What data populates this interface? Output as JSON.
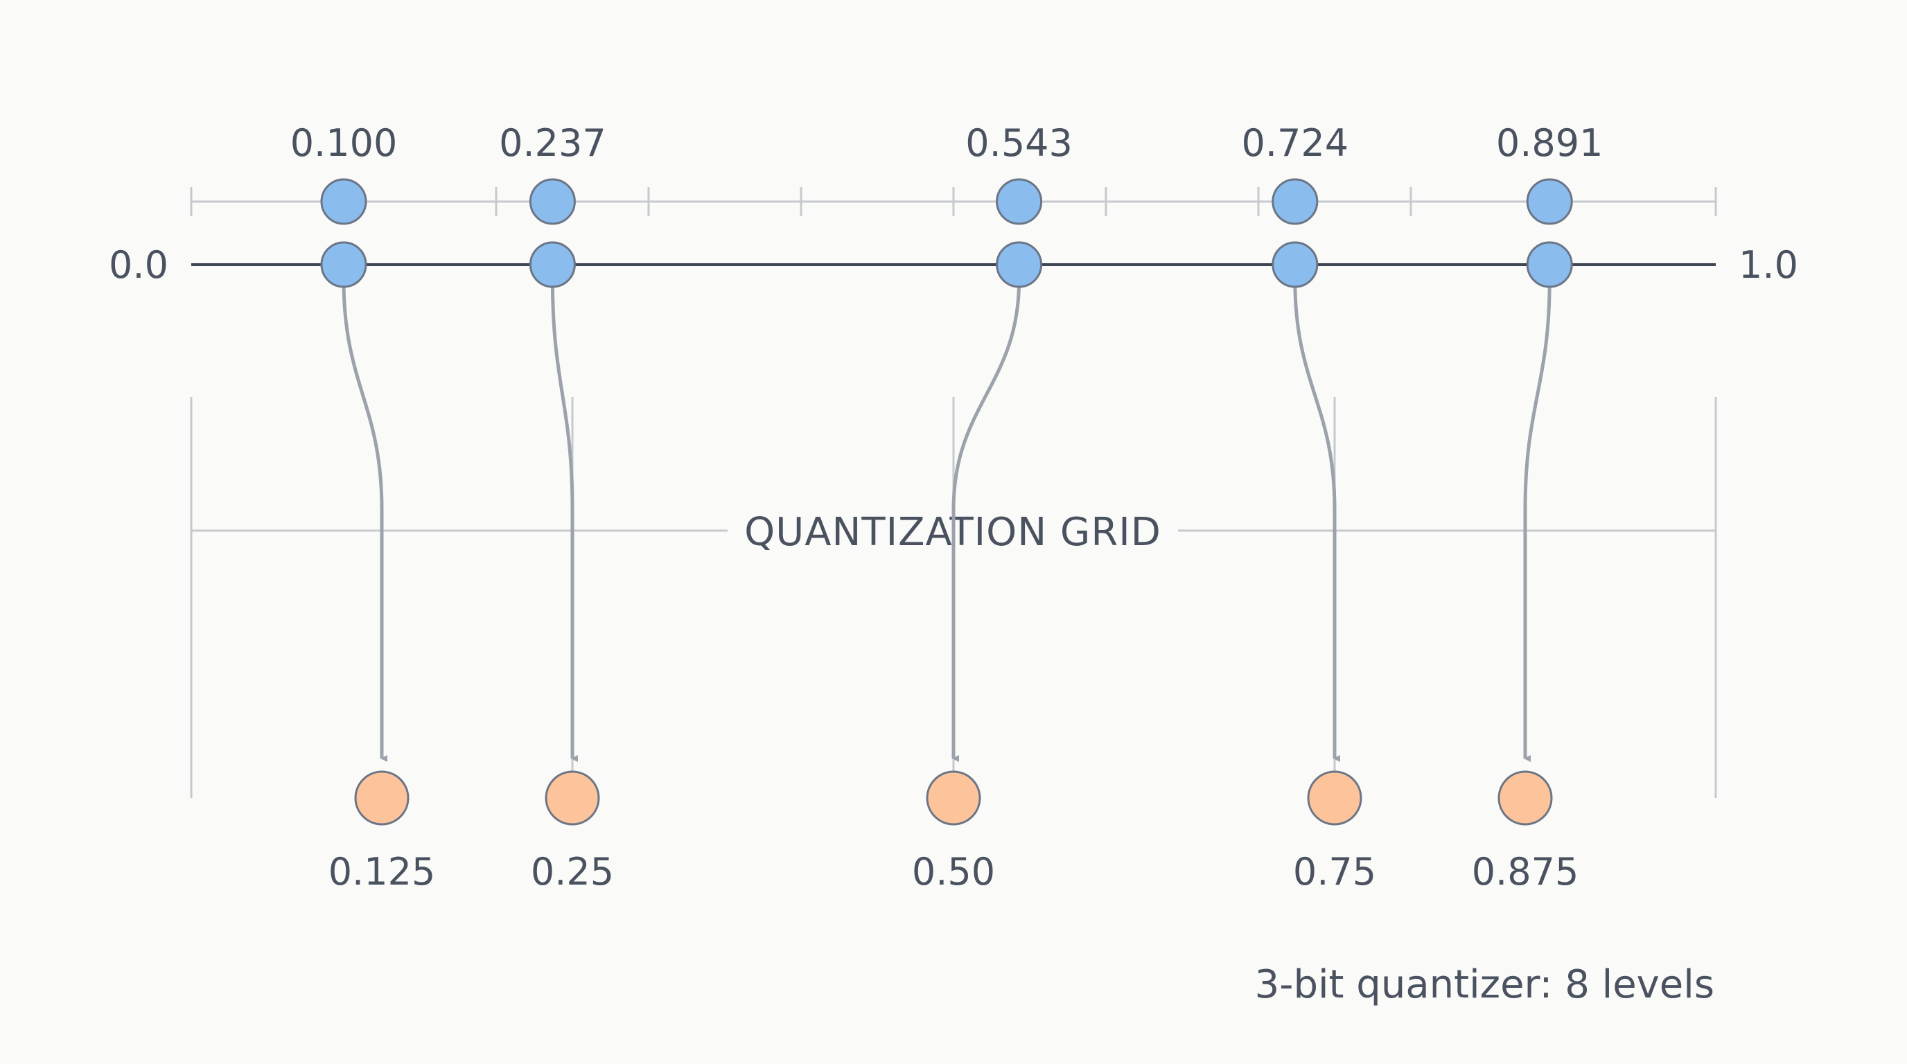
{
  "axis": {
    "min_label": "0.0",
    "max_label": "1.0",
    "min": 0.0,
    "max": 1.0
  },
  "input_values": [
    {
      "label": "0.100",
      "value": 0.1
    },
    {
      "label": "0.237",
      "value": 0.237
    },
    {
      "label": "0.543",
      "value": 0.543
    },
    {
      "label": "0.724",
      "value": 0.724
    },
    {
      "label": "0.891",
      "value": 0.891
    }
  ],
  "quantized_values": [
    {
      "label": "0.125",
      "value": 0.125
    },
    {
      "label": "0.25",
      "value": 0.25
    },
    {
      "label": "0.50",
      "value": 0.5
    },
    {
      "label": "0.75",
      "value": 0.75
    },
    {
      "label": "0.875",
      "value": 0.875
    }
  ],
  "grid": {
    "title": "QUANTIZATION GRID",
    "levels": 8
  },
  "caption": "3-bit quantizer: 8 levels",
  "colors": {
    "background": "#fafaf8",
    "input_fill": "#8bbcee",
    "input_stroke": "#6b7585",
    "output_fill": "#fdc39a",
    "output_stroke": "#6b7585",
    "axis_line": "#3f4654",
    "grid_line": "#c6c9cd",
    "arrow": "#9ca2ab",
    "text": "#4a5260"
  }
}
